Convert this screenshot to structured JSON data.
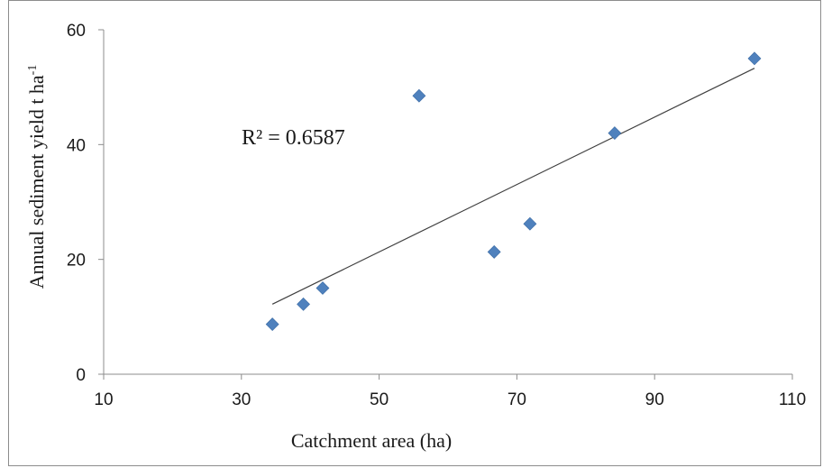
{
  "chart_data": {
    "type": "scatter",
    "xlabel": "Catchment area (ha)",
    "ylabel": "Annual sediment yield t ha",
    "ylabel_superscript": "-1",
    "xlim": [
      10,
      110
    ],
    "ylim": [
      0,
      60
    ],
    "xticks": [
      10,
      30,
      50,
      70,
      90,
      110
    ],
    "yticks": [
      0,
      20,
      40,
      60
    ],
    "grid": false,
    "legend": "none",
    "series": [
      {
        "points": [
          {
            "x": 34.5,
            "y": 8.7
          },
          {
            "x": 39.0,
            "y": 12.2
          },
          {
            "x": 41.8,
            "y": 15.0
          },
          {
            "x": 55.8,
            "y": 48.5
          },
          {
            "x": 66.7,
            "y": 21.3
          },
          {
            "x": 71.9,
            "y": 26.2
          },
          {
            "x": 84.2,
            "y": 42.0
          },
          {
            "x": 104.5,
            "y": 55.0
          }
        ],
        "marker_color": "#4f81bd",
        "marker": "diamond"
      }
    ],
    "trendline": {
      "type": "linear",
      "x_start": 34.5,
      "y_start": 12.2,
      "x_end": 104.5,
      "y_end": 53.3,
      "color": "#404040"
    },
    "annotations": [
      {
        "text": "R² = 0.6587"
      }
    ]
  }
}
